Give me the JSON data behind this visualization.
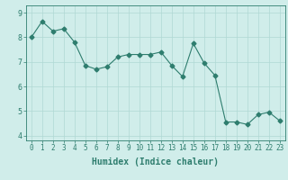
{
  "x": [
    0,
    1,
    2,
    3,
    4,
    5,
    6,
    7,
    8,
    9,
    10,
    11,
    12,
    13,
    14,
    15,
    16,
    17,
    18,
    19,
    20,
    21,
    22,
    23
  ],
  "y": [
    8.0,
    8.65,
    8.25,
    8.35,
    7.8,
    6.85,
    6.7,
    6.8,
    7.2,
    7.3,
    7.3,
    7.3,
    7.4,
    6.85,
    6.4,
    7.75,
    6.95,
    6.45,
    4.55,
    4.55,
    4.45,
    4.85,
    4.95,
    4.6
  ],
  "line_color": "#2e7d6e",
  "marker": "D",
  "marker_size": 2.5,
  "bg_color": "#d0edea",
  "grid_color": "#b0d8d4",
  "axis_color": "#2e7d6e",
  "xlabel": "Humidex (Indice chaleur)",
  "xlim": [
    -0.5,
    23.5
  ],
  "ylim": [
    3.8,
    9.3
  ],
  "yticks": [
    4,
    5,
    6,
    7,
    8,
    9
  ],
  "xticks": [
    0,
    1,
    2,
    3,
    4,
    5,
    6,
    7,
    8,
    9,
    10,
    11,
    12,
    13,
    14,
    15,
    16,
    17,
    18,
    19,
    20,
    21,
    22,
    23
  ],
  "tick_color": "#2e7d6e",
  "label_fontsize": 7,
  "tick_fontsize": 5.5
}
